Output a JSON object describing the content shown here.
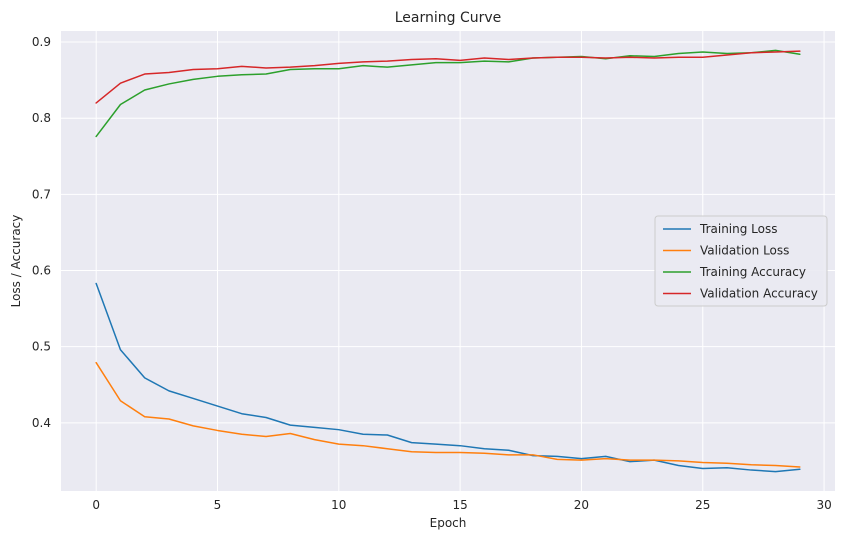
{
  "chart_data": {
    "type": "line",
    "title": "Learning Curve",
    "xlabel": "Epoch",
    "ylabel": "Loss / Accuracy",
    "xlim": [
      -1.45,
      30.45
    ],
    "ylim": [
      0.3105,
      0.9145
    ],
    "xticks": [
      0,
      5,
      10,
      15,
      20,
      25,
      30
    ],
    "yticks": [
      0.4,
      0.5,
      0.6,
      0.7,
      0.8,
      0.9
    ],
    "grid": true,
    "legend_position": "center-right",
    "background": "#EAEAF2",
    "x": [
      0,
      1,
      2,
      3,
      4,
      5,
      6,
      7,
      8,
      9,
      10,
      11,
      12,
      13,
      14,
      15,
      16,
      17,
      18,
      19,
      20,
      21,
      22,
      23,
      24,
      25,
      26,
      27,
      28,
      29
    ],
    "series": [
      {
        "name": "Training Loss",
        "color": "#1f77b4",
        "values": [
          0.583,
          0.496,
          0.459,
          0.442,
          0.432,
          0.422,
          0.412,
          0.407,
          0.397,
          0.394,
          0.391,
          0.385,
          0.384,
          0.374,
          0.372,
          0.37,
          0.366,
          0.364,
          0.357,
          0.356,
          0.353,
          0.356,
          0.349,
          0.351,
          0.344,
          0.34,
          0.341,
          0.338,
          0.336,
          0.339
        ]
      },
      {
        "name": "Validation Loss",
        "color": "#ff7f0e",
        "values": [
          0.479,
          0.429,
          0.408,
          0.405,
          0.396,
          0.39,
          0.385,
          0.382,
          0.386,
          0.378,
          0.372,
          0.37,
          0.366,
          0.362,
          0.361,
          0.361,
          0.36,
          0.358,
          0.358,
          0.352,
          0.351,
          0.353,
          0.351,
          0.351,
          0.35,
          0.348,
          0.347,
          0.345,
          0.344,
          0.342
        ]
      },
      {
        "name": "Training Accuracy",
        "color": "#2ca02c",
        "values": [
          0.776,
          0.818,
          0.837,
          0.845,
          0.851,
          0.855,
          0.857,
          0.858,
          0.864,
          0.865,
          0.865,
          0.869,
          0.867,
          0.87,
          0.873,
          0.873,
          0.875,
          0.874,
          0.879,
          0.88,
          0.881,
          0.878,
          0.882,
          0.881,
          0.885,
          0.887,
          0.885,
          0.886,
          0.889,
          0.884
        ]
      },
      {
        "name": "Validation Accuracy",
        "color": "#d62728",
        "values": [
          0.82,
          0.846,
          0.858,
          0.86,
          0.864,
          0.865,
          0.868,
          0.866,
          0.867,
          0.869,
          0.872,
          0.874,
          0.875,
          0.877,
          0.878,
          0.876,
          0.879,
          0.877,
          0.879,
          0.88,
          0.88,
          0.879,
          0.88,
          0.879,
          0.88,
          0.88,
          0.883,
          0.886,
          0.887,
          0.888
        ]
      }
    ]
  }
}
